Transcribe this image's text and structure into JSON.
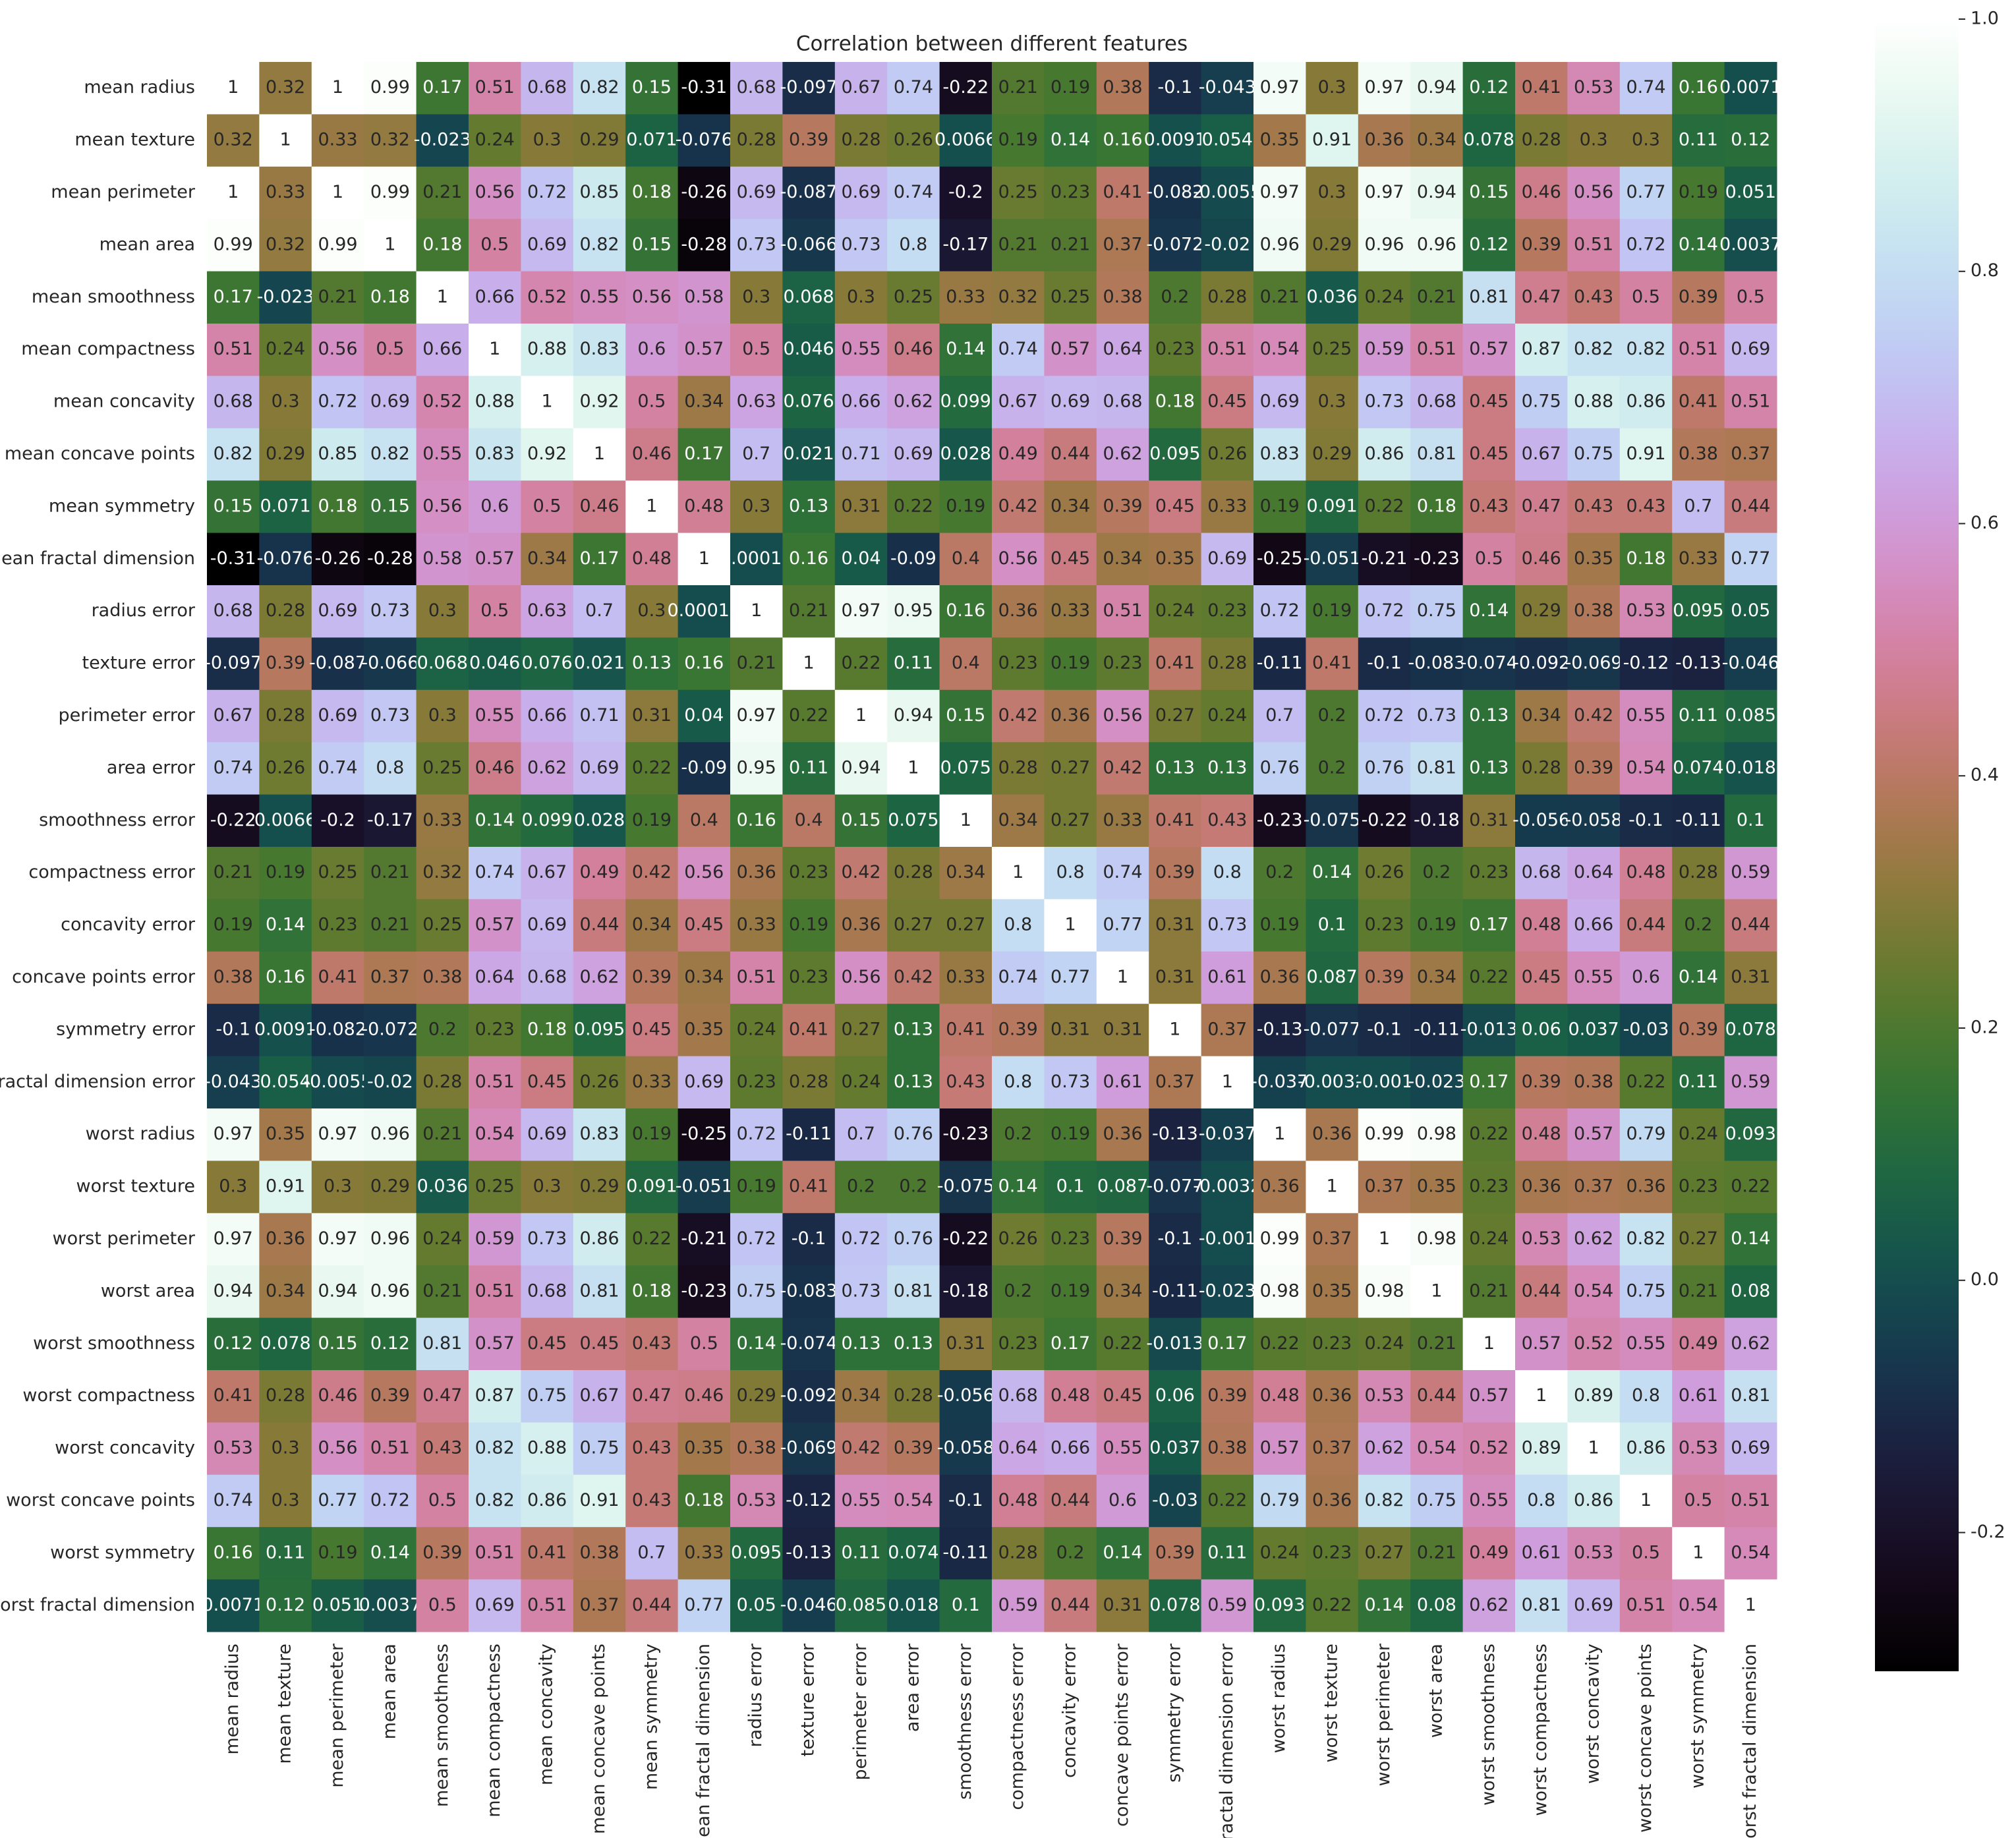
{
  "chart_data": {
    "type": "heatmap",
    "title": "Correlation between different features",
    "categories": [
      "mean radius",
      "mean texture",
      "mean perimeter",
      "mean area",
      "mean smoothness",
      "mean compactness",
      "mean concavity",
      "mean concave points",
      "mean symmetry",
      "mean fractal dimension",
      "radius error",
      "texture error",
      "perimeter error",
      "area error",
      "smoothness error",
      "compactness error",
      "concavity error",
      "concave points error",
      "symmetry error",
      "fractal dimension error",
      "worst radius",
      "worst texture",
      "worst perimeter",
      "worst area",
      "worst smoothness",
      "worst compactness",
      "worst concavity",
      "worst concave points",
      "worst symmetry",
      "worst fractal dimension"
    ],
    "values": [
      [
        1,
        0.32,
        1,
        0.99,
        0.17,
        0.51,
        0.68,
        0.82,
        0.15,
        -0.31,
        0.68,
        -0.097,
        0.67,
        0.74,
        -0.22,
        0.21,
        0.19,
        0.38,
        -0.1,
        -0.043,
        0.97,
        0.3,
        0.97,
        0.94,
        0.12,
        0.41,
        0.53,
        0.74,
        0.16,
        0.0071
      ],
      [
        0.32,
        1,
        0.33,
        0.32,
        -0.023,
        0.24,
        0.3,
        0.29,
        0.071,
        -0.076,
        0.28,
        0.39,
        0.28,
        0.26,
        0.0066,
        0.19,
        0.14,
        0.16,
        0.0091,
        0.054,
        0.35,
        0.91,
        0.36,
        0.34,
        0.078,
        0.28,
        0.3,
        0.3,
        0.11,
        0.12
      ],
      [
        1,
        0.33,
        1,
        0.99,
        0.21,
        0.56,
        0.72,
        0.85,
        0.18,
        -0.26,
        0.69,
        -0.087,
        0.69,
        0.74,
        -0.2,
        0.25,
        0.23,
        0.41,
        -0.082,
        -0.0055,
        0.97,
        0.3,
        0.97,
        0.94,
        0.15,
        0.46,
        0.56,
        0.77,
        0.19,
        0.051
      ],
      [
        0.99,
        0.32,
        0.99,
        1,
        0.18,
        0.5,
        0.69,
        0.82,
        0.15,
        -0.28,
        0.73,
        -0.066,
        0.73,
        0.8,
        -0.17,
        0.21,
        0.21,
        0.37,
        -0.072,
        -0.02,
        0.96,
        0.29,
        0.96,
        0.96,
        0.12,
        0.39,
        0.51,
        0.72,
        0.14,
        0.0037
      ],
      [
        0.17,
        -0.023,
        0.21,
        0.18,
        1,
        0.66,
        0.52,
        0.55,
        0.56,
        0.58,
        0.3,
        0.068,
        0.3,
        0.25,
        0.33,
        0.32,
        0.25,
        0.38,
        0.2,
        0.28,
        0.21,
        0.036,
        0.24,
        0.21,
        0.81,
        0.47,
        0.43,
        0.5,
        0.39,
        0.5
      ],
      [
        0.51,
        0.24,
        0.56,
        0.5,
        0.66,
        1,
        0.88,
        0.83,
        0.6,
        0.57,
        0.5,
        0.046,
        0.55,
        0.46,
        0.14,
        0.74,
        0.57,
        0.64,
        0.23,
        0.51,
        0.54,
        0.25,
        0.59,
        0.51,
        0.57,
        0.87,
        0.82,
        0.82,
        0.51,
        0.69
      ],
      [
        0.68,
        0.3,
        0.72,
        0.69,
        0.52,
        0.88,
        1,
        0.92,
        0.5,
        0.34,
        0.63,
        0.076,
        0.66,
        0.62,
        0.099,
        0.67,
        0.69,
        0.68,
        0.18,
        0.45,
        0.69,
        0.3,
        0.73,
        0.68,
        0.45,
        0.75,
        0.88,
        0.86,
        0.41,
        0.51
      ],
      [
        0.82,
        0.29,
        0.85,
        0.82,
        0.55,
        0.83,
        0.92,
        1,
        0.46,
        0.17,
        0.7,
        0.021,
        0.71,
        0.69,
        0.028,
        0.49,
        0.44,
        0.62,
        0.095,
        0.26,
        0.83,
        0.29,
        0.86,
        0.81,
        0.45,
        0.67,
        0.75,
        0.91,
        0.38,
        0.37
      ],
      [
        0.15,
        0.071,
        0.18,
        0.15,
        0.56,
        0.6,
        0.5,
        0.46,
        1,
        0.48,
        0.3,
        0.13,
        0.31,
        0.22,
        0.19,
        0.42,
        0.34,
        0.39,
        0.45,
        0.33,
        0.19,
        0.091,
        0.22,
        0.18,
        0.43,
        0.47,
        0.43,
        0.43,
        0.7,
        0.44
      ],
      [
        -0.31,
        -0.076,
        -0.26,
        -0.28,
        0.58,
        0.57,
        0.34,
        0.17,
        0.48,
        1,
        0.00011,
        0.16,
        0.04,
        -0.09,
        0.4,
        0.56,
        0.45,
        0.34,
        0.35,
        0.69,
        -0.25,
        -0.051,
        -0.21,
        -0.23,
        0.5,
        0.46,
        0.35,
        0.18,
        0.33,
        0.77
      ],
      [
        0.68,
        0.28,
        0.69,
        0.73,
        0.3,
        0.5,
        0.63,
        0.7,
        0.3,
        0.00011,
        1,
        0.21,
        0.97,
        0.95,
        0.16,
        0.36,
        0.33,
        0.51,
        0.24,
        0.23,
        0.72,
        0.19,
        0.72,
        0.75,
        0.14,
        0.29,
        0.38,
        0.53,
        0.095,
        0.05
      ],
      [
        -0.097,
        0.39,
        -0.087,
        -0.066,
        0.068,
        0.046,
        0.076,
        0.021,
        0.13,
        0.16,
        0.21,
        1,
        0.22,
        0.11,
        0.4,
        0.23,
        0.19,
        0.23,
        0.41,
        0.28,
        -0.11,
        0.41,
        -0.1,
        -0.083,
        -0.074,
        -0.092,
        -0.069,
        -0.12,
        -0.13,
        -0.046
      ],
      [
        0.67,
        0.28,
        0.69,
        0.73,
        0.3,
        0.55,
        0.66,
        0.71,
        0.31,
        0.04,
        0.97,
        0.22,
        1,
        0.94,
        0.15,
        0.42,
        0.36,
        0.56,
        0.27,
        0.24,
        0.7,
        0.2,
        0.72,
        0.73,
        0.13,
        0.34,
        0.42,
        0.55,
        0.11,
        0.085
      ],
      [
        0.74,
        0.26,
        0.74,
        0.8,
        0.25,
        0.46,
        0.62,
        0.69,
        0.22,
        -0.09,
        0.95,
        0.11,
        0.94,
        1,
        0.075,
        0.28,
        0.27,
        0.42,
        0.13,
        0.13,
        0.76,
        0.2,
        0.76,
        0.81,
        0.13,
        0.28,
        0.39,
        0.54,
        0.074,
        0.018
      ],
      [
        -0.22,
        0.0066,
        -0.2,
        -0.17,
        0.33,
        0.14,
        0.099,
        0.028,
        0.19,
        0.4,
        0.16,
        0.4,
        0.15,
        0.075,
        1,
        0.34,
        0.27,
        0.33,
        0.41,
        0.43,
        -0.23,
        -0.075,
        -0.22,
        -0.18,
        0.31,
        -0.056,
        -0.058,
        -0.1,
        -0.11,
        0.1
      ],
      [
        0.21,
        0.19,
        0.25,
        0.21,
        0.32,
        0.74,
        0.67,
        0.49,
        0.42,
        0.56,
        0.36,
        0.23,
        0.42,
        0.28,
        0.34,
        1,
        0.8,
        0.74,
        0.39,
        0.8,
        0.2,
        0.14,
        0.26,
        0.2,
        0.23,
        0.68,
        0.64,
        0.48,
        0.28,
        0.59
      ],
      [
        0.19,
        0.14,
        0.23,
        0.21,
        0.25,
        0.57,
        0.69,
        0.44,
        0.34,
        0.45,
        0.33,
        0.19,
        0.36,
        0.27,
        0.27,
        0.8,
        1,
        0.77,
        0.31,
        0.73,
        0.19,
        0.1,
        0.23,
        0.19,
        0.17,
        0.48,
        0.66,
        0.44,
        0.2,
        0.44
      ],
      [
        0.38,
        0.16,
        0.41,
        0.37,
        0.38,
        0.64,
        0.68,
        0.62,
        0.39,
        0.34,
        0.51,
        0.23,
        0.56,
        0.42,
        0.33,
        0.74,
        0.77,
        1,
        0.31,
        0.61,
        0.36,
        0.087,
        0.39,
        0.34,
        0.22,
        0.45,
        0.55,
        0.6,
        0.14,
        0.31
      ],
      [
        -0.1,
        0.0091,
        -0.082,
        -0.072,
        0.2,
        0.23,
        0.18,
        0.095,
        0.45,
        0.35,
        0.24,
        0.41,
        0.27,
        0.13,
        0.41,
        0.39,
        0.31,
        0.31,
        1,
        0.37,
        -0.13,
        -0.077,
        -0.1,
        -0.11,
        -0.013,
        0.06,
        0.037,
        -0.03,
        0.39,
        0.078
      ],
      [
        -0.043,
        0.054,
        -0.0055,
        -0.02,
        0.28,
        0.51,
        0.45,
        0.26,
        0.33,
        0.69,
        0.23,
        0.28,
        0.24,
        0.13,
        0.43,
        0.8,
        0.73,
        0.61,
        0.37,
        1,
        -0.037,
        -0.0032,
        -0.001,
        -0.023,
        0.17,
        0.39,
        0.38,
        0.22,
        0.11,
        0.59
      ],
      [
        0.97,
        0.35,
        0.97,
        0.96,
        0.21,
        0.54,
        0.69,
        0.83,
        0.19,
        -0.25,
        0.72,
        -0.11,
        0.7,
        0.76,
        -0.23,
        0.2,
        0.19,
        0.36,
        -0.13,
        -0.037,
        1,
        0.36,
        0.99,
        0.98,
        0.22,
        0.48,
        0.57,
        0.79,
        0.24,
        0.093
      ],
      [
        0.3,
        0.91,
        0.3,
        0.29,
        0.036,
        0.25,
        0.3,
        0.29,
        0.091,
        -0.051,
        0.19,
        0.41,
        0.2,
        0.2,
        -0.075,
        0.14,
        0.1,
        0.087,
        -0.077,
        -0.0032,
        0.36,
        1,
        0.37,
        0.35,
        0.23,
        0.36,
        0.37,
        0.36,
        0.23,
        0.22
      ],
      [
        0.97,
        0.36,
        0.97,
        0.96,
        0.24,
        0.59,
        0.73,
        0.86,
        0.22,
        -0.21,
        0.72,
        -0.1,
        0.72,
        0.76,
        -0.22,
        0.26,
        0.23,
        0.39,
        -0.1,
        -0.001,
        0.99,
        0.37,
        1,
        0.98,
        0.24,
        0.53,
        0.62,
        0.82,
        0.27,
        0.14
      ],
      [
        0.94,
        0.34,
        0.94,
        0.96,
        0.21,
        0.51,
        0.68,
        0.81,
        0.18,
        -0.23,
        0.75,
        -0.083,
        0.73,
        0.81,
        -0.18,
        0.2,
        0.19,
        0.34,
        -0.11,
        -0.023,
        0.98,
        0.35,
        0.98,
        1,
        0.21,
        0.44,
        0.54,
        0.75,
        0.21,
        0.08
      ],
      [
        0.12,
        0.078,
        0.15,
        0.12,
        0.81,
        0.57,
        0.45,
        0.45,
        0.43,
        0.5,
        0.14,
        -0.074,
        0.13,
        0.13,
        0.31,
        0.23,
        0.17,
        0.22,
        -0.013,
        0.17,
        0.22,
        0.23,
        0.24,
        0.21,
        1,
        0.57,
        0.52,
        0.55,
        0.49,
        0.62
      ],
      [
        0.41,
        0.28,
        0.46,
        0.39,
        0.47,
        0.87,
        0.75,
        0.67,
        0.47,
        0.46,
        0.29,
        -0.092,
        0.34,
        0.28,
        -0.056,
        0.68,
        0.48,
        0.45,
        0.06,
        0.39,
        0.48,
        0.36,
        0.53,
        0.44,
        0.57,
        1,
        0.89,
        0.8,
        0.61,
        0.81
      ],
      [
        0.53,
        0.3,
        0.56,
        0.51,
        0.43,
        0.82,
        0.88,
        0.75,
        0.43,
        0.35,
        0.38,
        -0.069,
        0.42,
        0.39,
        -0.058,
        0.64,
        0.66,
        0.55,
        0.037,
        0.38,
        0.57,
        0.37,
        0.62,
        0.54,
        0.52,
        0.89,
        1,
        0.86,
        0.53,
        0.69
      ],
      [
        0.74,
        0.3,
        0.77,
        0.72,
        0.5,
        0.82,
        0.86,
        0.91,
        0.43,
        0.18,
        0.53,
        -0.12,
        0.55,
        0.54,
        -0.1,
        0.48,
        0.44,
        0.6,
        -0.03,
        0.22,
        0.79,
        0.36,
        0.82,
        0.75,
        0.55,
        0.8,
        0.86,
        1,
        0.5,
        0.51
      ],
      [
        0.16,
        0.11,
        0.19,
        0.14,
        0.39,
        0.51,
        0.41,
        0.38,
        0.7,
        0.33,
        0.095,
        -0.13,
        0.11,
        0.074,
        -0.11,
        0.28,
        0.2,
        0.14,
        0.39,
        0.11,
        0.24,
        0.23,
        0.27,
        0.21,
        0.49,
        0.61,
        0.53,
        0.5,
        1,
        0.54
      ],
      [
        0.0071,
        0.12,
        0.051,
        0.0037,
        0.5,
        0.69,
        0.51,
        0.37,
        0.44,
        0.77,
        0.05,
        -0.046,
        0.085,
        0.018,
        0.1,
        0.59,
        0.44,
        0.31,
        0.078,
        0.59,
        0.093,
        0.22,
        0.14,
        0.08,
        0.62,
        0.81,
        0.69,
        0.51,
        0.54,
        1
      ]
    ],
    "colormap": "cubehelix",
    "clim": [
      -0.31,
      1
    ],
    "cticks": [
      -0.2,
      {
        "value": 0,
        "label": "0.0"
      },
      0.2,
      0.4,
      0.6,
      0.8,
      {
        "value": 1,
        "label": "1.0"
      }
    ]
  }
}
